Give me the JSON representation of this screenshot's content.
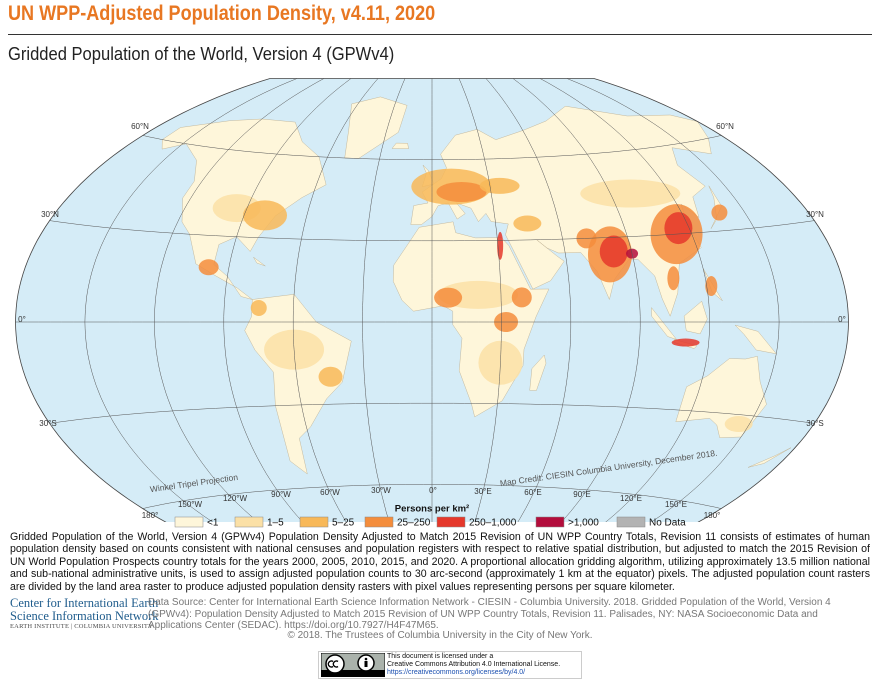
{
  "header": {
    "title": "UN WPP-Adjusted Population Density, v4.11, 2020",
    "subtitle": "Gridded Population of the World, Version 4 (GPWv4)"
  },
  "map": {
    "lat_labels_left": [
      "60°N",
      "30°N",
      "0°",
      "30°S"
    ],
    "lat_labels_right": [
      "60°N",
      "30°N",
      "0°",
      "30°S"
    ],
    "lon_labels": [
      "180°",
      "150°W",
      "120°W",
      "90°W",
      "60°W",
      "30°W",
      "0°",
      "30°E",
      "60°E",
      "90°E",
      "120°E",
      "150°E",
      "180°"
    ],
    "projection_note": "Winkel Tripel Projection",
    "credit": "Map Credit: CIESIN Columbia University, December 2018."
  },
  "legend": {
    "title": "Persons per km²",
    "items": [
      {
        "label": "<1",
        "color": "#fef6da"
      },
      {
        "label": "1–5",
        "color": "#fbe0a6"
      },
      {
        "label": "5–25",
        "color": "#f8b858"
      },
      {
        "label": "25–250",
        "color": "#f48d3c"
      },
      {
        "label": "250–1,000",
        "color": "#e5382b"
      },
      {
        "label": ">1,000",
        "color": "#b30d3c"
      },
      {
        "label": "No Data",
        "color": "#b3b3b3"
      }
    ]
  },
  "description": "Gridded Population of the World, Version 4 (GPWv4) Population Density Adjusted to Match 2015 Revision of UN WPP Country Totals, Revision 11 consists of estimates of human population density based on counts consistent with national censuses and population registers with respect to relative spatial distribution, but adjusted to match the 2015 Revision of UN World Population Prospects country totals for the years 2000, 2005, 2010, 2015, and 2020. A proportional allocation gridding algorithm, utilizing approximately 13.5 million national and sub-national administrative units, is used to assign adjusted population counts to 30 arc-second (approximately 1 km at the equator) pixels. The adjusted population count rasters are divided by the land area raster to produce adjusted population density rasters with pixel values representing persons per square kilometer.",
  "logo": {
    "lines": [
      "Center for International Earth",
      "Science Information Network",
      "EARTH INSTITUTE | COLUMBIA UNIVERSITY"
    ]
  },
  "source": "Data Source: Center for International Earth Science Information Network - CIESIN - Columbia University. 2018. Gridded Population of the World, Version 4 (GPWv4): Population Density Adjusted to Match 2015 Revision of UN WPP Country Totals, Revision 11. Palisades, NY: NASA Socioeconomic Data and Applications Center (SEDAC). https://doi.org/10.7927/H4F47M65.",
  "copyright": "© 2018. The Trustees of Columbia University in the City of New York.",
  "license": {
    "lines": [
      "This document is licensed under a",
      "Creative Commons Attribution 4.0 International License.",
      "https://creativecommons.org/licenses/by/4.0/"
    ]
  }
}
